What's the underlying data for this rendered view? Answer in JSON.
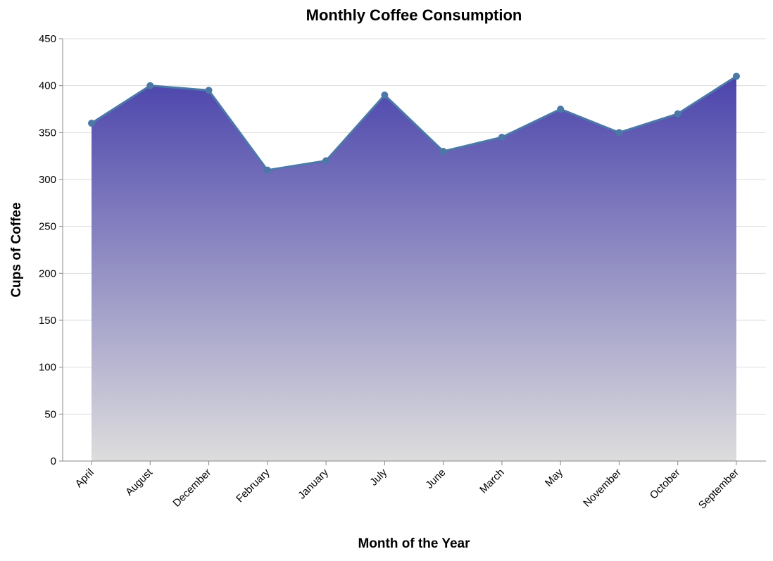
{
  "chart_data": {
    "type": "area",
    "title": "Monthly Coffee Consumption",
    "xlabel": "Month of the Year",
    "ylabel": "Cups of Coffee",
    "categories": [
      "April",
      "August",
      "December",
      "February",
      "January",
      "July",
      "June",
      "March",
      "May",
      "November",
      "October",
      "September"
    ],
    "values": [
      360,
      400,
      395,
      310,
      320,
      390,
      330,
      345,
      375,
      350,
      370,
      410
    ],
    "ylim": [
      0,
      450
    ],
    "yticks": [
      0,
      50,
      100,
      150,
      200,
      250,
      300,
      350,
      400,
      450
    ],
    "grid": true,
    "line_color": "#4c78a8",
    "point_color": "#4c78a8",
    "fill_gradient": [
      "#4b44ac",
      "#dddddd"
    ],
    "grid_color": "#dddddd",
    "axis_color": "#888888"
  }
}
